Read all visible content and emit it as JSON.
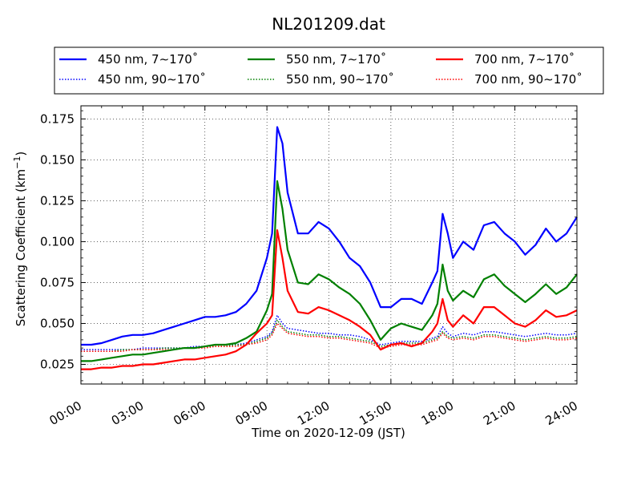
{
  "chart_data": {
    "type": "line",
    "title": "NL201209.dat",
    "xlabel": "Time on 2020-12-09 (JST)",
    "ylabel_main": "Scattering Coefficient (km",
    "ylabel_sup": "−1",
    "ylabel_end": ")",
    "xlim": [
      0,
      24
    ],
    "ylim": [
      0.013,
      0.183
    ],
    "xticks": [
      0,
      3,
      6,
      9,
      12,
      15,
      18,
      21,
      24
    ],
    "xtick_labels": [
      "00:00",
      "03:00",
      "06:00",
      "09:00",
      "12:00",
      "15:00",
      "18:00",
      "21:00",
      "24:00"
    ],
    "yticks": [
      0.025,
      0.05,
      0.075,
      0.1,
      0.125,
      0.15,
      0.175
    ],
    "ytick_labels": [
      "0.025",
      "0.050",
      "0.075",
      "0.100",
      "0.125",
      "0.150",
      "0.175"
    ],
    "grid": true,
    "legend_position": "top (above axes)",
    "x": [
      0,
      0.5,
      1,
      1.5,
      2,
      2.5,
      3,
      3.5,
      4,
      4.5,
      5,
      5.5,
      6,
      6.5,
      7,
      7.5,
      8,
      8.5,
      9,
      9.25,
      9.5,
      9.75,
      10,
      10.5,
      11,
      11.5,
      12,
      12.5,
      13,
      13.5,
      14,
      14.5,
      15,
      15.5,
      16,
      16.5,
      17,
      17.25,
      17.5,
      17.75,
      18,
      18.5,
      19,
      19.5,
      20,
      20.5,
      21,
      21.5,
      22,
      22.5,
      23,
      23.5,
      24
    ],
    "series": [
      {
        "name": "450 nm, 7∼170˚",
        "color": "#0000ff",
        "style": "solid",
        "values": [
          0.037,
          0.037,
          0.038,
          0.04,
          0.042,
          0.043,
          0.043,
          0.044,
          0.046,
          0.048,
          0.05,
          0.052,
          0.054,
          0.054,
          0.055,
          0.057,
          0.062,
          0.07,
          0.09,
          0.105,
          0.17,
          0.16,
          0.13,
          0.105,
          0.105,
          0.112,
          0.108,
          0.1,
          0.09,
          0.085,
          0.075,
          0.06,
          0.06,
          0.065,
          0.065,
          0.062,
          0.075,
          0.082,
          0.117,
          0.105,
          0.09,
          0.1,
          0.095,
          0.11,
          0.112,
          0.105,
          0.1,
          0.092,
          0.098,
          0.108,
          0.1,
          0.105,
          0.115
        ]
      },
      {
        "name": "450 nm, 90∼170˚",
        "color": "#0000ff",
        "style": "dotted",
        "values": [
          0.034,
          0.034,
          0.034,
          0.034,
          0.034,
          0.034,
          0.035,
          0.035,
          0.035,
          0.035,
          0.035,
          0.036,
          0.036,
          0.037,
          0.037,
          0.037,
          0.038,
          0.04,
          0.042,
          0.045,
          0.055,
          0.05,
          0.047,
          0.046,
          0.045,
          0.044,
          0.044,
          0.043,
          0.043,
          0.042,
          0.04,
          0.037,
          0.038,
          0.039,
          0.039,
          0.039,
          0.041,
          0.042,
          0.048,
          0.044,
          0.042,
          0.044,
          0.043,
          0.045,
          0.045,
          0.044,
          0.043,
          0.042,
          0.043,
          0.044,
          0.043,
          0.043,
          0.044
        ]
      },
      {
        "name": "550 nm, 7∼170˚",
        "color": "#008000",
        "style": "solid",
        "values": [
          0.027,
          0.027,
          0.028,
          0.029,
          0.03,
          0.031,
          0.031,
          0.032,
          0.033,
          0.034,
          0.035,
          0.035,
          0.036,
          0.037,
          0.037,
          0.038,
          0.041,
          0.045,
          0.058,
          0.068,
          0.137,
          0.12,
          0.095,
          0.075,
          0.074,
          0.08,
          0.077,
          0.072,
          0.068,
          0.062,
          0.052,
          0.04,
          0.047,
          0.05,
          0.048,
          0.046,
          0.055,
          0.062,
          0.086,
          0.07,
          0.064,
          0.07,
          0.066,
          0.077,
          0.08,
          0.073,
          0.068,
          0.063,
          0.068,
          0.074,
          0.068,
          0.072,
          0.08
        ]
      },
      {
        "name": "550 nm, 90∼170˚",
        "color": "#008000",
        "style": "dotted",
        "values": [
          0.033,
          0.033,
          0.033,
          0.033,
          0.034,
          0.034,
          0.034,
          0.034,
          0.035,
          0.035,
          0.035,
          0.035,
          0.036,
          0.036,
          0.036,
          0.037,
          0.037,
          0.039,
          0.041,
          0.044,
          0.052,
          0.048,
          0.045,
          0.044,
          0.043,
          0.043,
          0.042,
          0.042,
          0.041,
          0.04,
          0.039,
          0.036,
          0.037,
          0.038,
          0.038,
          0.038,
          0.04,
          0.041,
          0.045,
          0.042,
          0.041,
          0.042,
          0.041,
          0.043,
          0.043,
          0.042,
          0.041,
          0.04,
          0.041,
          0.042,
          0.041,
          0.041,
          0.042
        ]
      },
      {
        "name": "700 nm, 7∼170˚",
        "color": "#ff0000",
        "style": "solid",
        "values": [
          0.022,
          0.022,
          0.023,
          0.023,
          0.024,
          0.024,
          0.025,
          0.025,
          0.026,
          0.027,
          0.028,
          0.028,
          0.029,
          0.03,
          0.031,
          0.033,
          0.037,
          0.044,
          0.05,
          0.055,
          0.107,
          0.09,
          0.07,
          0.057,
          0.056,
          0.06,
          0.058,
          0.055,
          0.052,
          0.048,
          0.043,
          0.034,
          0.037,
          0.038,
          0.036,
          0.038,
          0.045,
          0.05,
          0.065,
          0.052,
          0.048,
          0.055,
          0.05,
          0.06,
          0.06,
          0.055,
          0.05,
          0.048,
          0.052,
          0.058,
          0.054,
          0.055,
          0.058
        ]
      },
      {
        "name": "700 nm, 90∼170˚",
        "color": "#ff0000",
        "style": "dotted",
        "values": [
          0.033,
          0.033,
          0.033,
          0.033,
          0.033,
          0.034,
          0.034,
          0.034,
          0.034,
          0.034,
          0.035,
          0.035,
          0.035,
          0.036,
          0.036,
          0.036,
          0.037,
          0.038,
          0.04,
          0.043,
          0.05,
          0.047,
          0.044,
          0.043,
          0.042,
          0.042,
          0.041,
          0.041,
          0.04,
          0.039,
          0.038,
          0.035,
          0.036,
          0.037,
          0.037,
          0.037,
          0.039,
          0.04,
          0.044,
          0.041,
          0.04,
          0.041,
          0.04,
          0.042,
          0.042,
          0.041,
          0.04,
          0.039,
          0.04,
          0.041,
          0.04,
          0.04,
          0.041
        ]
      }
    ]
  }
}
